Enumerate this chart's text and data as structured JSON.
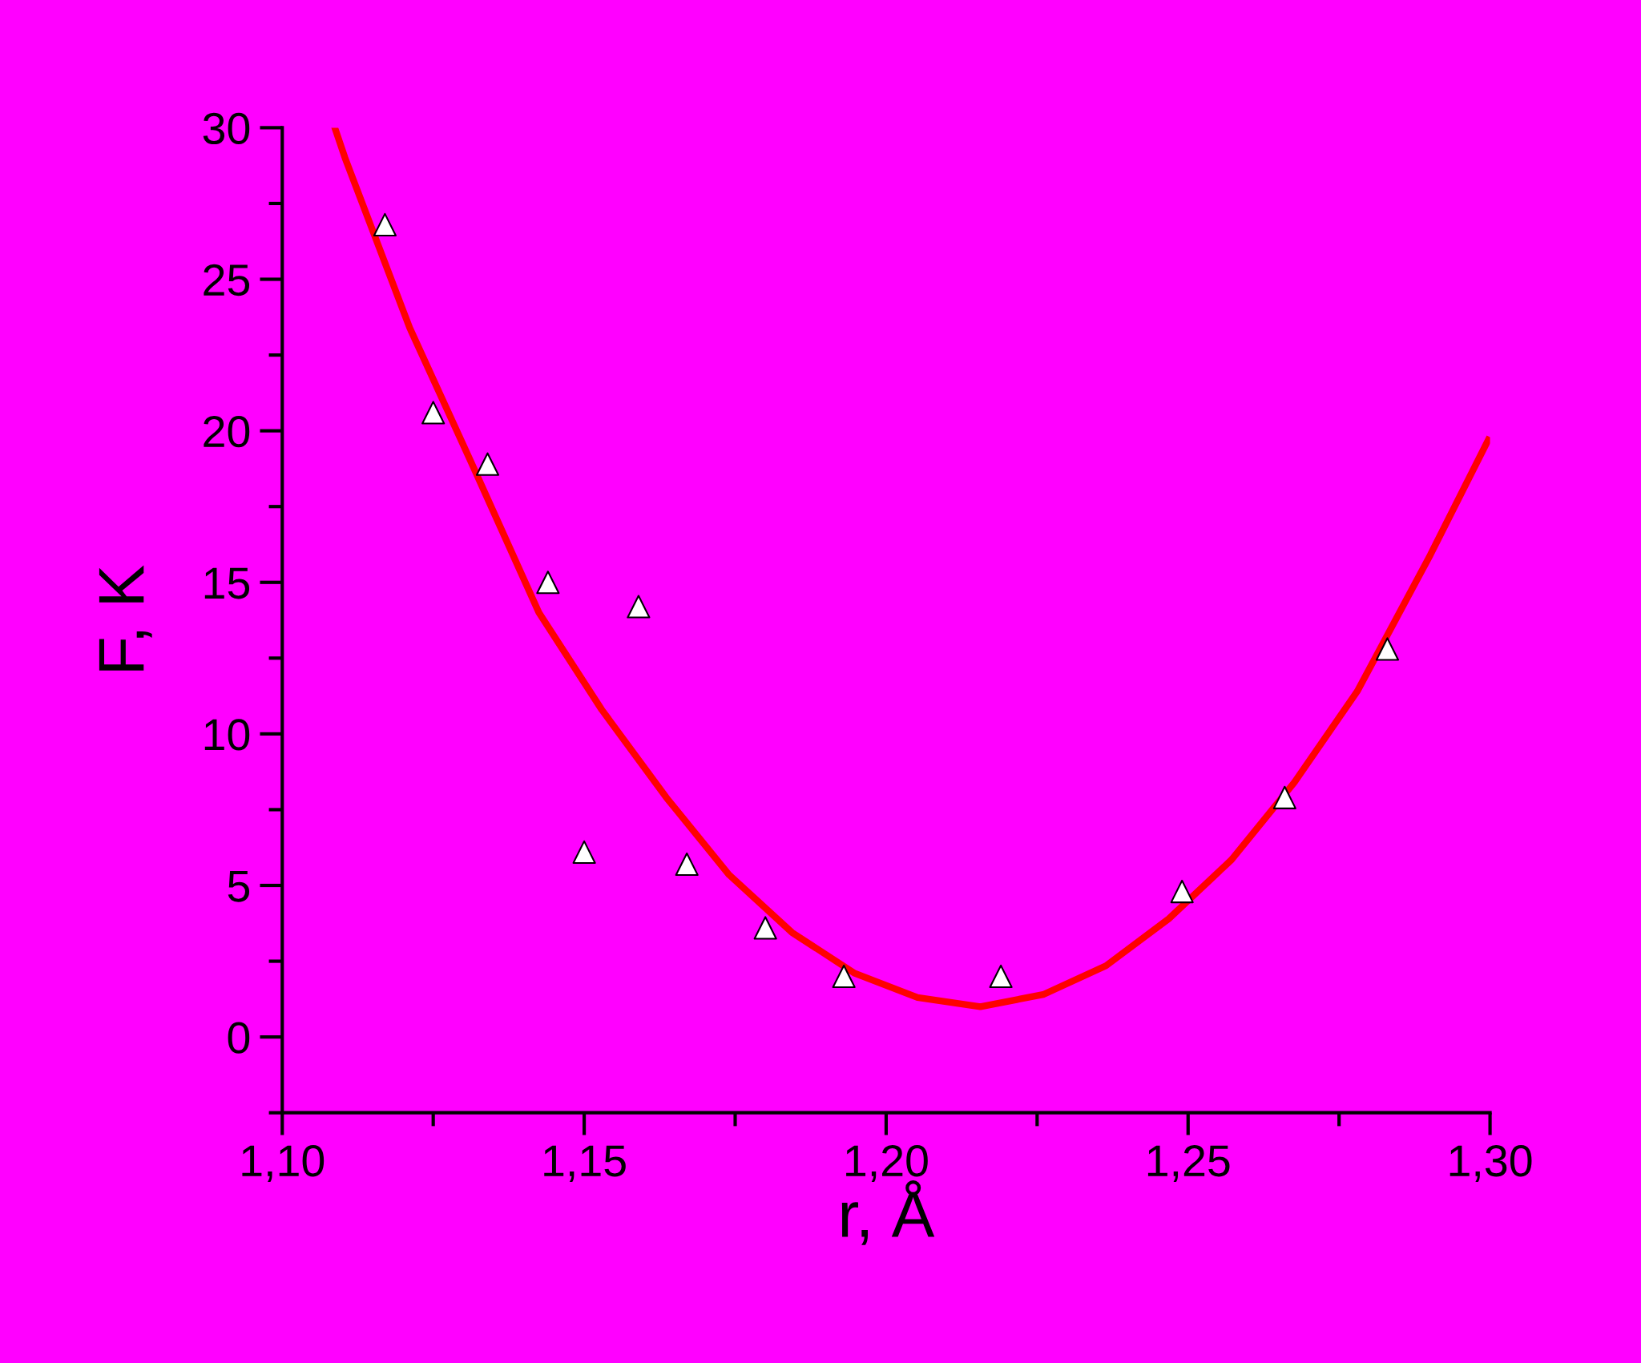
{
  "chart_data": {
    "type": "scatter",
    "xlabel": "r, Å",
    "ylabel": "F, K",
    "xlim": [
      1.1,
      1.3
    ],
    "ylim": [
      -2.5,
      30
    ],
    "xticks": [
      {
        "value": 1.1,
        "label": "1,10"
      },
      {
        "value": 1.15,
        "label": "1,15"
      },
      {
        "value": 1.2,
        "label": "1,20"
      },
      {
        "value": 1.25,
        "label": "1,25"
      },
      {
        "value": 1.3,
        "label": "1,30"
      }
    ],
    "yticks": [
      0,
      5,
      10,
      15,
      20,
      25,
      30
    ],
    "grid": false,
    "legend": false,
    "series": [
      {
        "type": "line",
        "color": "#ff0000",
        "marker": "none",
        "line_style": "solid",
        "x": [
          1.1087,
          1.1104,
          1.1211,
          1.1312,
          1.1425,
          1.1529,
          1.1636,
          1.174,
          1.1844,
          1.1948,
          1.2052,
          1.2156,
          1.226,
          1.2364,
          1.2468,
          1.2572,
          1.2676,
          1.278,
          1.2901,
          1.2997
        ],
        "values": [
          30,
          29.0,
          23.4,
          19.0,
          14.0,
          10.8,
          7.9,
          5.35,
          3.45,
          2.1,
          1.3,
          1.0,
          1.4,
          2.35,
          3.9,
          5.85,
          8.4,
          11.4,
          15.9,
          19.7
        ]
      },
      {
        "type": "scatter",
        "color": "#ffffff",
        "marker": "triangle",
        "x": [
          1.117,
          1.125,
          1.134,
          1.144,
          1.15,
          1.159,
          1.167,
          1.18,
          1.193,
          1.219,
          1.249,
          1.266,
          1.283
        ],
        "values": [
          26.8,
          20.6,
          18.9,
          15.0,
          6.1,
          14.2,
          5.7,
          3.6,
          2.0,
          2.0,
          4.8,
          7.9,
          12.8
        ]
      }
    ]
  }
}
